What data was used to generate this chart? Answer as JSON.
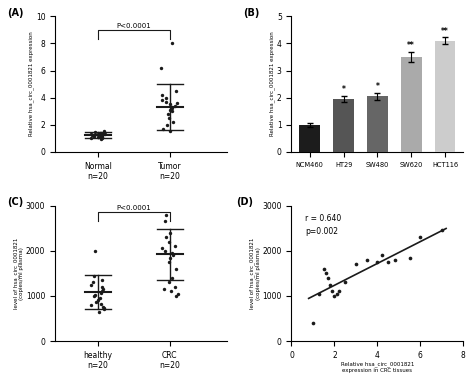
{
  "panel_A": {
    "title": "(A)",
    "groups": [
      "Normal",
      "Tumor"
    ],
    "ns": [
      "n=20",
      "n=20"
    ],
    "ylim": [
      0,
      10
    ],
    "yticks": [
      0,
      2,
      4,
      6,
      8,
      10
    ],
    "ylabel": "Relative hsa_circ_0001821 expression",
    "ptext": "P<0.0001",
    "normal_pts": [
      1.0,
      1.05,
      1.08,
      1.1,
      1.12,
      1.15,
      1.18,
      1.2,
      1.22,
      1.25,
      1.28,
      1.3,
      1.32,
      1.35,
      1.38,
      1.4,
      1.42,
      1.45,
      1.5,
      0.92
    ],
    "tumor_pts": [
      1.5,
      1.7,
      2.0,
      2.2,
      2.5,
      2.8,
      3.0,
      3.1,
      3.2,
      3.3,
      3.4,
      3.5,
      3.6,
      3.7,
      3.8,
      4.0,
      4.2,
      4.5,
      6.2,
      8.0
    ]
  },
  "panel_B": {
    "title": "(B)",
    "categories": [
      "NCM460",
      "HT29",
      "SW480",
      "SW620",
      "HCT116"
    ],
    "values": [
      1.0,
      1.95,
      2.05,
      3.5,
      4.1
    ],
    "errors": [
      0.07,
      0.1,
      0.12,
      0.18,
      0.12
    ],
    "colors": [
      "#1c1c1c",
      "#555555",
      "#666666",
      "#aaaaaa",
      "#cccccc"
    ],
    "stars": [
      "",
      "*",
      "*",
      "**",
      "**"
    ],
    "ylim": [
      0,
      5
    ],
    "yticks": [
      0,
      1,
      2,
      3,
      4,
      5
    ],
    "ylabel": "Relative hsa_circ_0001821 expression"
  },
  "panel_C": {
    "title": "(C)",
    "groups": [
      "healthy",
      "CRC"
    ],
    "ns": [
      "n=20",
      "n=20"
    ],
    "ylim": [
      0,
      3000
    ],
    "yticks": [
      0,
      1000,
      2000,
      3000
    ],
    "ylabel": "level of hsa_circ_0001821\n(copies/ml plasma)",
    "ptext": "P<0.0001",
    "healthy_pts": [
      650,
      700,
      730,
      760,
      790,
      820,
      860,
      900,
      950,
      1000,
      1020,
      1060,
      1100,
      1150,
      1200,
      1250,
      1300,
      1350,
      1450,
      2000
    ],
    "crc_pts": [
      1000,
      1050,
      1100,
      1150,
      1200,
      1300,
      1400,
      1600,
      1750,
      1850,
      1900,
      1950,
      2000,
      2050,
      2100,
      2200,
      2300,
      2400,
      2650,
      2800
    ]
  },
  "panel_D": {
    "title": "(D)",
    "xlabel": "Relative hsa_circ_0001821\nexpression in CRC tissues",
    "ylabel": "level of hsa_circ_0001821\n(copies/ml plasma)",
    "r_text": "r = 0.640",
    "p_text": "p=0.002",
    "xlim": [
      0,
      8
    ],
    "ylim": [
      0,
      3000
    ],
    "xticks": [
      0,
      2,
      4,
      6,
      8
    ],
    "yticks": [
      0,
      1000,
      2000,
      3000
    ],
    "x_pts": [
      1.0,
      1.3,
      1.5,
      1.6,
      1.7,
      1.8,
      1.9,
      2.0,
      2.1,
      2.2,
      2.5,
      3.0,
      3.5,
      4.0,
      4.2,
      4.5,
      4.8,
      5.5,
      6.0,
      7.0
    ],
    "y_pts": [
      400,
      1050,
      1600,
      1500,
      1400,
      1250,
      1100,
      1000,
      1050,
      1100,
      1300,
      1700,
      1800,
      1750,
      1900,
      1750,
      1800,
      1850,
      2300,
      2450
    ]
  },
  "bg_color": "#ffffff",
  "dot_color": "#1a1a1a",
  "line_color": "#1a1a1a"
}
